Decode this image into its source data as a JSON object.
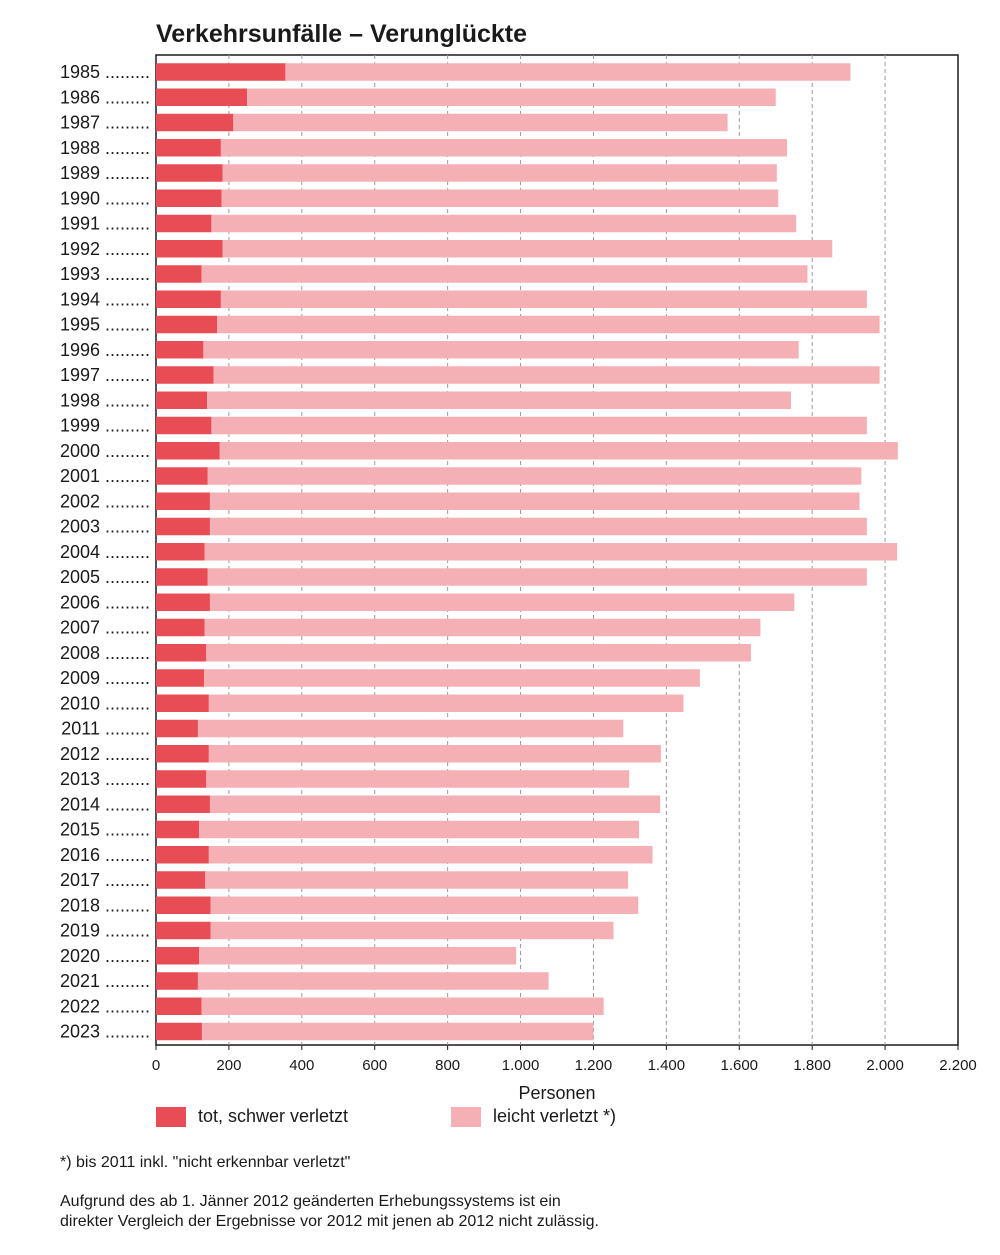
{
  "chart_data": {
    "type": "bar",
    "orientation": "horizontal",
    "stacked": true,
    "title": "Verkehrsunfälle – Verunglückte",
    "xlabel": "Personen",
    "xlim": [
      0,
      2200
    ],
    "x_ticks": [
      0,
      200,
      400,
      600,
      800,
      1000,
      1200,
      1400,
      1600,
      1800,
      2000,
      2200
    ],
    "x_tick_labels": [
      "0",
      "200",
      "400",
      "600",
      "800",
      "1.000",
      "1.200",
      "1.400",
      "1.600",
      "1.800",
      "2.000",
      "2.200"
    ],
    "categories": [
      "1985",
      "1986",
      "1987",
      "1988",
      "1989",
      "1990",
      "1991",
      "1992",
      "1993",
      "1994",
      "1995",
      "1996",
      "1997",
      "1998",
      "1999",
      "2000",
      "2001",
      "2002",
      "2003",
      "2004",
      "2005",
      "2006",
      "2007",
      "2008",
      "2009",
      "2010",
      "2011",
      "2012",
      "2013",
      "2014",
      "2015",
      "2016",
      "2017",
      "2018",
      "2019",
      "2020",
      "2021",
      "2022",
      "2023"
    ],
    "category_dots": ".........",
    "grid": "vertical dashed",
    "legend_position": "bottom",
    "series": [
      {
        "name": "tot, schwer verletzt",
        "color": "#e84c55",
        "values": [
          355,
          250,
          212,
          178,
          183,
          180,
          152,
          183,
          125,
          178,
          168,
          130,
          158,
          140,
          152,
          175,
          142,
          148,
          148,
          133,
          142,
          148,
          133,
          138,
          132,
          145,
          115,
          145,
          138,
          148,
          118,
          145,
          135,
          150,
          150,
          118,
          115,
          125,
          126
        ]
      },
      {
        "name": "leicht verletzt *)",
        "color": "#f5b0b5",
        "values": [
          1550,
          1450,
          1356,
          1553,
          1520,
          1527,
          1604,
          1672,
          1662,
          1772,
          1817,
          1633,
          1827,
          1602,
          1798,
          1860,
          1793,
          1782,
          1802,
          1900,
          1808,
          1603,
          1525,
          1494,
          1360,
          1302,
          1167,
          1240,
          1160,
          1235,
          1207,
          1217,
          1160,
          1173,
          1105,
          870,
          962,
          1103,
          1074
        ]
      }
    ]
  },
  "footnote": "*) bis 2011 inkl. \"nicht erkennbar verletzt\"",
  "note_line1": "Aufgrund des ab 1. Jänner 2012 geänderten Erhebungssystems ist ein",
  "note_line2": "direkter Vergleich der Ergebnisse vor 2012 mit jenen ab 2012 nicht zulässig."
}
